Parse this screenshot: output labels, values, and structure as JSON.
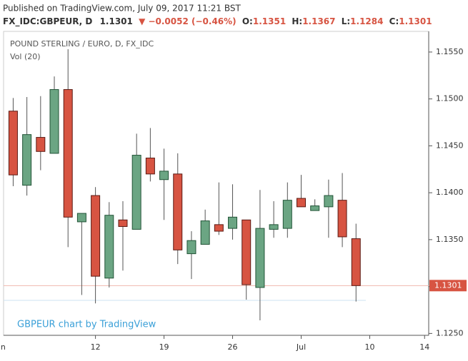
{
  "header": {
    "published": "Published on TradingView.com, July 09, 2017 11:21 BST",
    "symbol": "FX_IDC:GBPEUR, D",
    "last": "1.1301",
    "change": "▼ −0.0052 (−0.46%)",
    "ohlc": [
      {
        "label": "O:",
        "value": "1.1351"
      },
      {
        "label": "H:",
        "value": "1.1367"
      },
      {
        "label": "L:",
        "value": "1.1284"
      },
      {
        "label": "C:",
        "value": "1.1301"
      }
    ]
  },
  "chart_data": {
    "type": "candlestick",
    "title": "POUND STERLING / EURO, D, FX_IDC",
    "subtitle": "Vol (20)",
    "watermark": "GBPEUR chart by TradingView",
    "x": [
      0,
      1,
      2,
      3,
      4,
      5,
      6,
      7,
      8,
      9,
      10,
      11,
      12,
      13,
      14,
      15,
      16,
      17,
      18,
      19,
      20,
      21,
      22,
      23,
      24,
      25
    ],
    "open": [
      1.1487,
      1.1408,
      1.1459,
      1.1442,
      1.151,
      1.1369,
      1.1397,
      1.1309,
      1.1371,
      1.1361,
      1.1437,
      1.1414,
      1.142,
      1.1335,
      1.1345,
      1.1366,
      1.1362,
      1.1371,
      1.1299,
      1.1361,
      1.1362,
      1.1394,
      1.1381,
      1.1385,
      1.1392,
      1.1351
    ],
    "high": [
      1.1501,
      1.1502,
      1.1503,
      1.1524,
      1.1553,
      1.1378,
      1.1406,
      1.139,
      1.1391,
      1.1463,
      1.1469,
      1.1447,
      1.1442,
      1.1359,
      1.1382,
      1.1411,
      1.1409,
      1.1371,
      1.1403,
      1.1391,
      1.1411,
      1.1419,
      1.1393,
      1.1414,
      1.1421,
      1.1367
    ],
    "low": [
      1.1407,
      1.1397,
      1.1424,
      1.1442,
      1.1342,
      1.1291,
      1.1282,
      1.1299,
      1.1317,
      1.1361,
      1.1412,
      1.1371,
      1.1324,
      1.1308,
      1.1345,
      1.1355,
      1.135,
      1.1286,
      1.1264,
      1.1352,
      1.1352,
      1.1385,
      1.1381,
      1.1352,
      1.1342,
      1.1284
    ],
    "close": [
      1.1419,
      1.1462,
      1.1444,
      1.151,
      1.1374,
      1.1378,
      1.1311,
      1.1376,
      1.1364,
      1.144,
      1.142,
      1.1423,
      1.1339,
      1.1349,
      1.137,
      1.1359,
      1.1374,
      1.1302,
      1.1362,
      1.1366,
      1.1392,
      1.1385,
      1.1386,
      1.1397,
      1.1353,
      1.1301
    ],
    "up_color": "#6ba583",
    "down_color": "#d75442",
    "xlim": [
      -0.7,
      30.3
    ],
    "xticks": [
      {
        "value": -1,
        "label": "Jun"
      },
      {
        "value": 6,
        "label": "12"
      },
      {
        "value": 11,
        "label": "19"
      },
      {
        "value": 16,
        "label": "26"
      },
      {
        "value": 21,
        "label": "Jul"
      },
      {
        "value": 26,
        "label": "10"
      },
      {
        "value": 30,
        "label": "14"
      }
    ],
    "ylim": [
      1.1248,
      1.1572
    ],
    "yticks": [
      {
        "value": 1.125,
        "label": "1.1250"
      },
      {
        "value": 1.13,
        "label": "1.1300"
      },
      {
        "value": 1.135,
        "label": "1.1350"
      },
      {
        "value": 1.14,
        "label": "1.1400"
      },
      {
        "value": 1.145,
        "label": "1.1450"
      },
      {
        "value": 1.15,
        "label": "1.1500"
      },
      {
        "value": 1.155,
        "label": "1.1550"
      }
    ],
    "last_price": {
      "value": 1.1301,
      "label": "1.1301"
    }
  }
}
